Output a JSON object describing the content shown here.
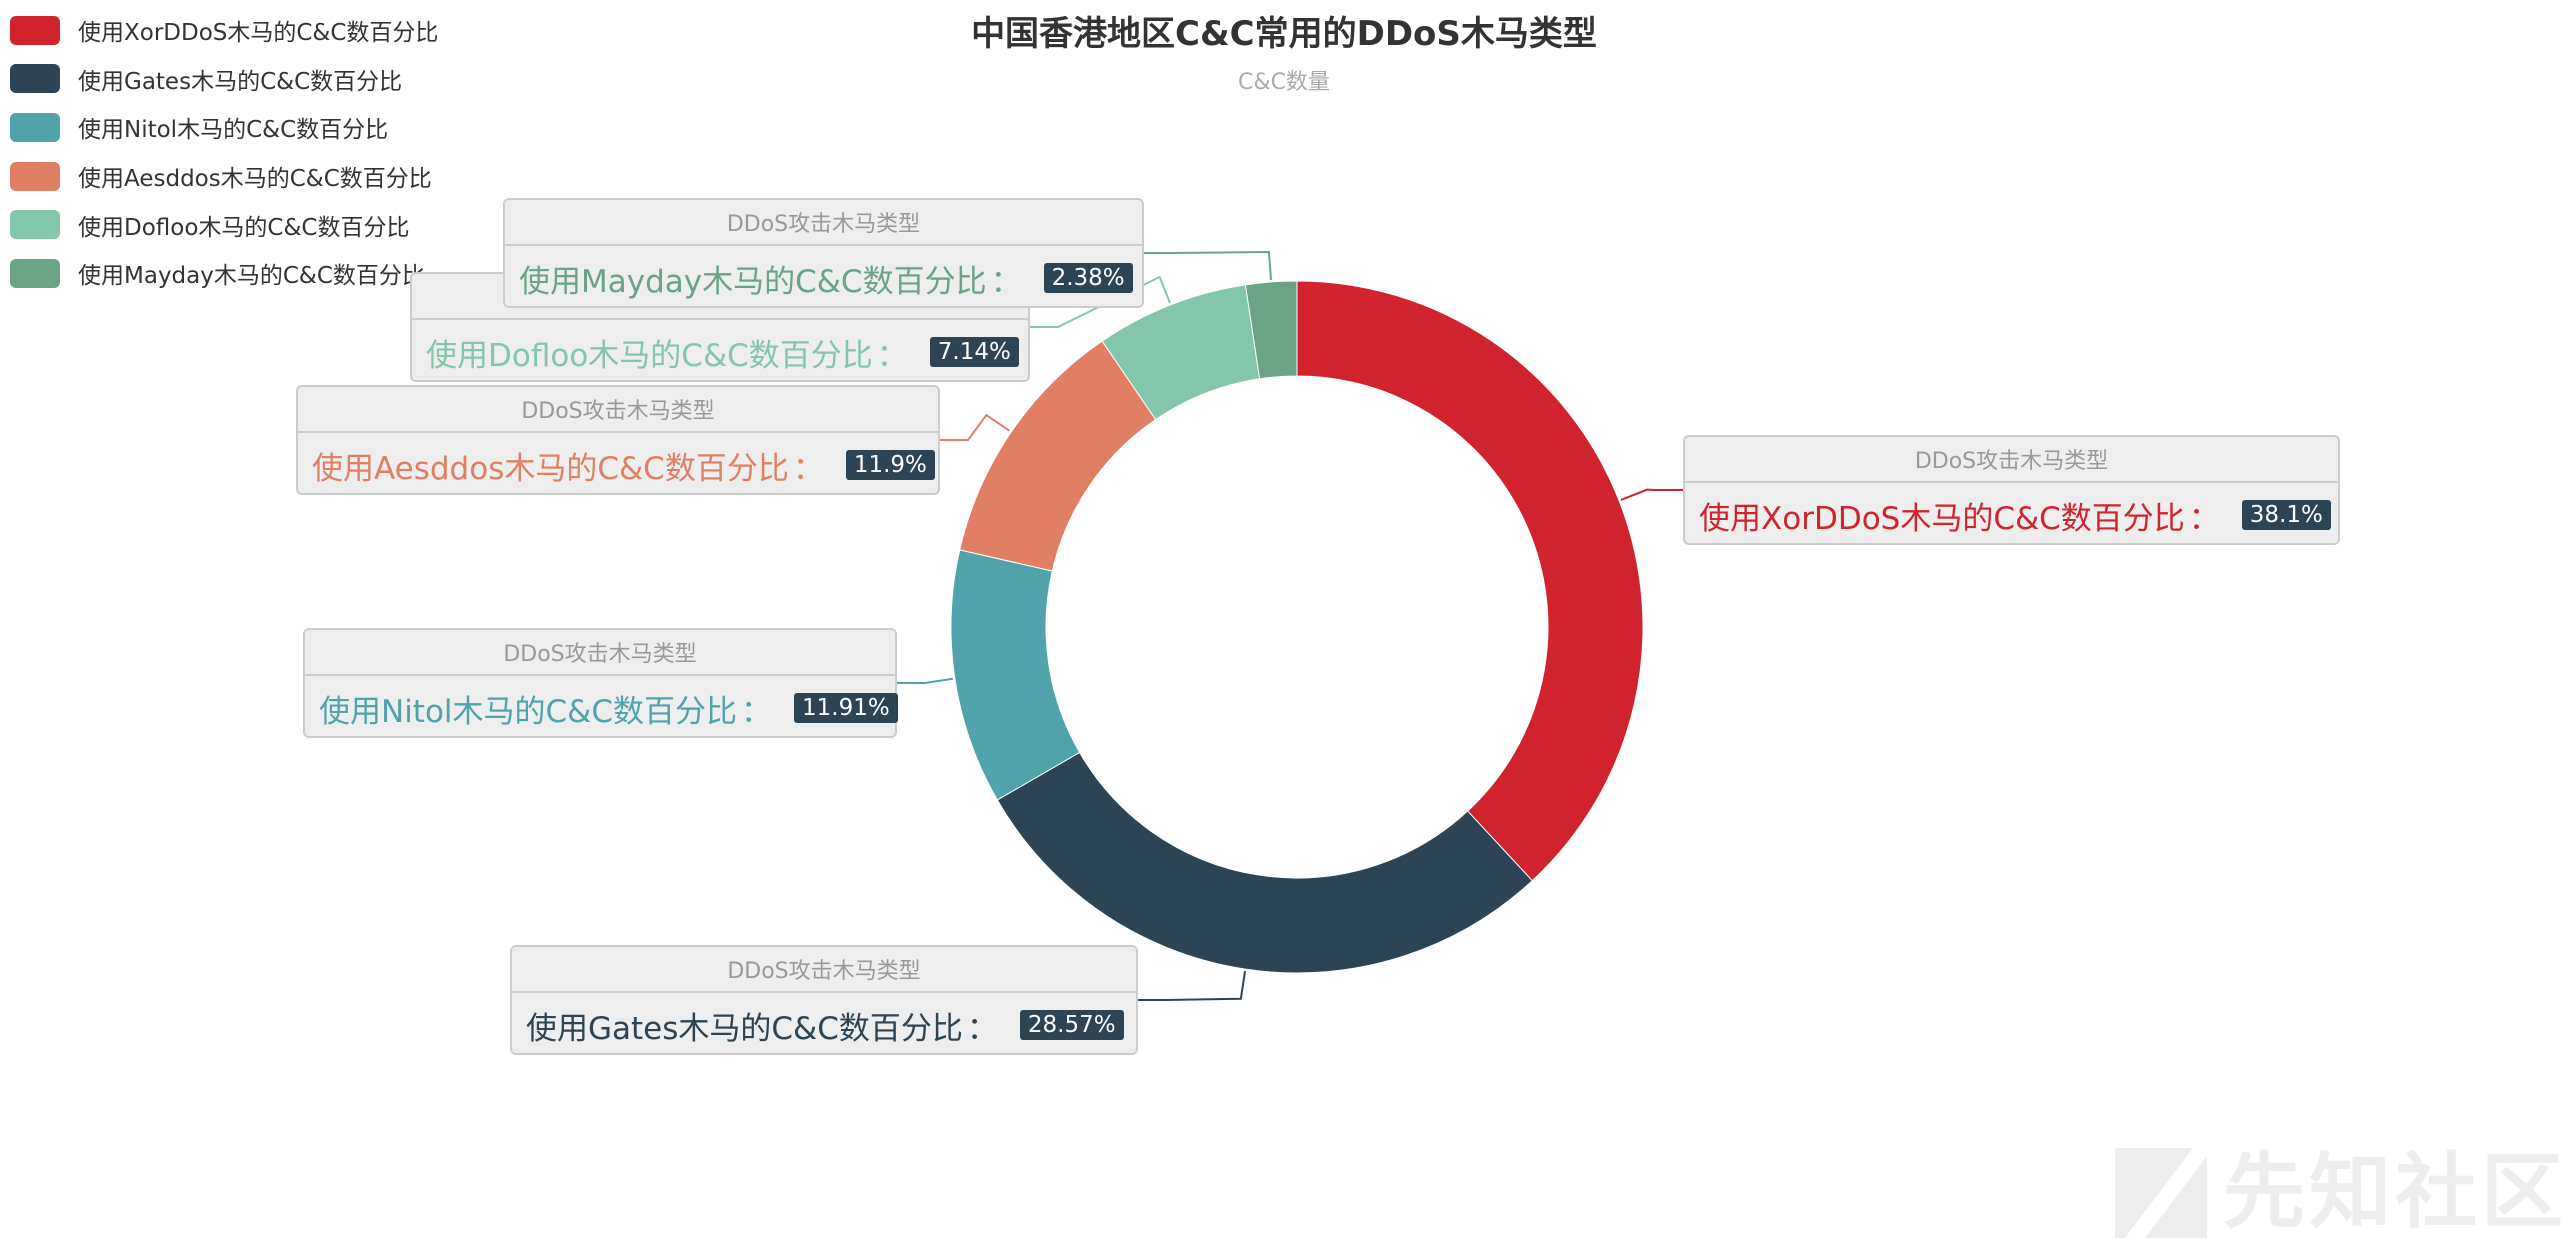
{
  "chart_data": {
    "type": "pie",
    "title": "中国香港地区C&C常用的DDoS木马类型",
    "subtitle": "C&C数量",
    "series_name": "DDoS攻击木马类型",
    "slices": [
      {
        "name": "使用XorDDoS木马的C&C数百分比",
        "value": 38.1,
        "label": "38.1%",
        "color": "#d0232d"
      },
      {
        "name": "使用Gates木马的C&C数百分比",
        "value": 28.57,
        "label": "28.57%",
        "color": "#2c4453"
      },
      {
        "name": "使用Nitol木马的C&C数百分比",
        "value": 11.91,
        "label": "11.91%",
        "color": "#50a3ab"
      },
      {
        "name": "使用Aesddos木马的C&C数百分比",
        "value": 11.9,
        "label": "11.9%",
        "color": "#e07f63"
      },
      {
        "name": "使用Dofloo木马的C&C数百分比",
        "value": 7.14,
        "label": "7.14%",
        "color": "#84c6ab"
      },
      {
        "name": "使用Mayday木马的C&C数百分比",
        "value": 2.38,
        "label": "2.38%",
        "color": "#6aa386"
      }
    ],
    "legend_position": "top-left",
    "colon": "："
  },
  "watermark": {
    "text": "先知社区"
  }
}
